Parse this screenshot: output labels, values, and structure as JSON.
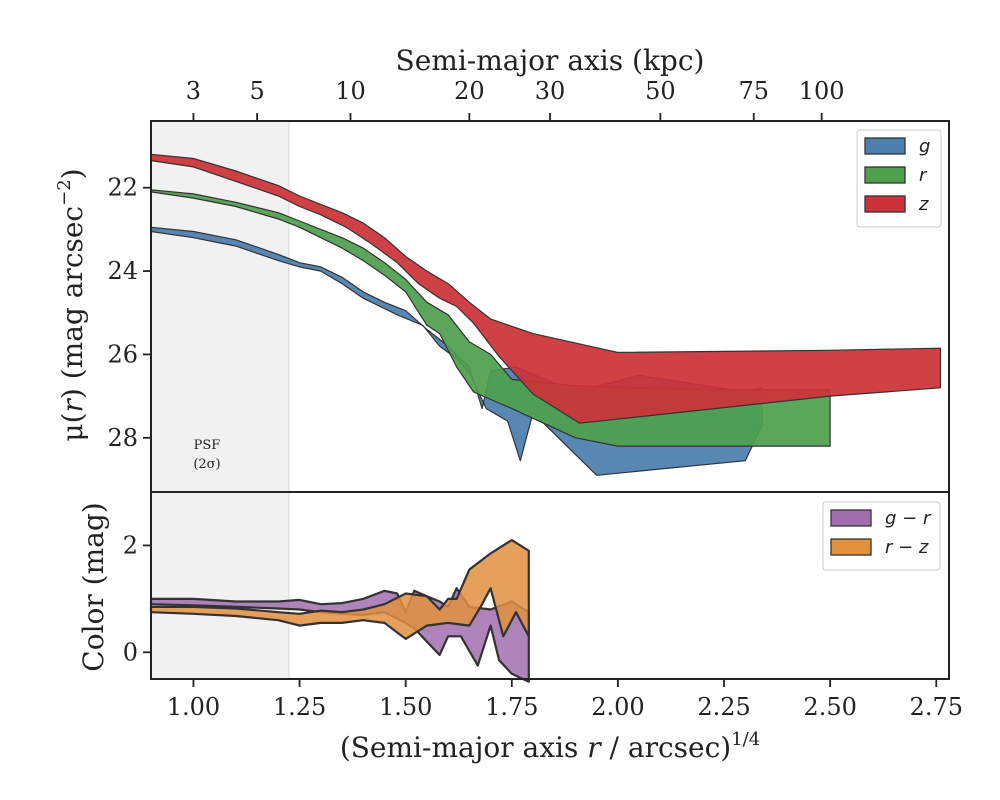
{
  "colors": {
    "g": "#4c7eae",
    "r": "#4f9f4f",
    "z": "#cc3338",
    "gr": "#a06eae",
    "rz": "#e1913e",
    "psf": "#f1f1f1"
  },
  "chart_data": [
    {
      "type": "area",
      "panel": "surface-brightness",
      "xlabel_parts": [
        "(Semi-major axis ",
        "r",
        " / arcsec)",
        "1/4"
      ],
      "ylabel_parts": [
        "μ(",
        "r",
        ") (mag arcsec",
        "−2",
        ")"
      ],
      "top_axis_title": "Semi-major axis (kpc)",
      "xlim": [
        0.9,
        2.78
      ],
      "ylim": [
        29.3,
        20.4
      ],
      "y_inverted": true,
      "x_ticks": [
        1.0,
        1.25,
        1.5,
        1.75,
        2.0,
        2.25,
        2.5,
        2.75
      ],
      "x_tick_labels": [
        "1.00",
        "1.25",
        "1.50",
        "1.75",
        "2.00",
        "2.25",
        "2.50",
        "2.75"
      ],
      "y_ticks": [
        22,
        24,
        26,
        28
      ],
      "y_tick_labels": [
        "22",
        "24",
        "26",
        "28"
      ],
      "top_ticks": [
        {
          "label": "3",
          "x": 1.0
        },
        {
          "label": "5",
          "x": 1.15
        },
        {
          "label": "10",
          "x": 1.37
        },
        {
          "label": "20",
          "x": 1.65
        },
        {
          "label": "30",
          "x": 1.84
        },
        {
          "label": "50",
          "x": 2.1
        },
        {
          "label": "75",
          "x": 2.32
        },
        {
          "label": "100",
          "x": 2.48
        }
      ],
      "psf_region": {
        "x0": 0.9,
        "x1": 1.225
      },
      "psf_label_lines": [
        "PSF",
        "(2σ)"
      ],
      "legend_position": "top-right",
      "series": [
        {
          "name": "g",
          "color_key": "g",
          "upper": [
            [
              0.9,
              22.95
            ],
            [
              1.0,
              23.05
            ],
            [
              1.1,
              23.25
            ],
            [
              1.2,
              23.6
            ],
            [
              1.25,
              23.8
            ],
            [
              1.3,
              23.9
            ],
            [
              1.35,
              24.15
            ],
            [
              1.4,
              24.5
            ],
            [
              1.45,
              24.75
            ],
            [
              1.5,
              24.95
            ],
            [
              1.55,
              25.4
            ],
            [
              1.6,
              25.8
            ],
            [
              1.65,
              26.3
            ],
            [
              1.68,
              27.3
            ],
            [
              1.7,
              26.4
            ],
            [
              1.76,
              26.3
            ],
            [
              1.9,
              26.9
            ],
            [
              2.05,
              26.5
            ],
            [
              2.3,
              26.9
            ],
            [
              2.34,
              26.8
            ]
          ],
          "lower": [
            [
              2.34,
              27.7
            ],
            [
              2.3,
              28.55
            ],
            [
              1.95,
              28.9
            ],
            [
              1.8,
              27.4
            ],
            [
              1.77,
              28.55
            ],
            [
              1.74,
              27.6
            ],
            [
              1.69,
              27.3
            ],
            [
              1.65,
              26.45
            ],
            [
              1.62,
              26.1
            ],
            [
              1.58,
              25.8
            ],
            [
              1.54,
              25.3
            ],
            [
              1.48,
              25.05
            ],
            [
              1.4,
              24.65
            ],
            [
              1.35,
              24.3
            ],
            [
              1.3,
              24.0
            ],
            [
              1.25,
              23.9
            ],
            [
              1.2,
              23.75
            ],
            [
              1.1,
              23.4
            ],
            [
              1.0,
              23.2
            ],
            [
              0.9,
              23.05
            ]
          ]
        },
        {
          "name": "r",
          "color_key": "r",
          "upper": [
            [
              0.9,
              22.05
            ],
            [
              1.0,
              22.15
            ],
            [
              1.1,
              22.35
            ],
            [
              1.2,
              22.6
            ],
            [
              1.25,
              22.8
            ],
            [
              1.3,
              23.0
            ],
            [
              1.35,
              23.2
            ],
            [
              1.4,
              23.45
            ],
            [
              1.45,
              23.8
            ],
            [
              1.5,
              24.2
            ],
            [
              1.55,
              24.75
            ],
            [
              1.6,
              25.05
            ],
            [
              1.65,
              25.7
            ],
            [
              1.7,
              26.0
            ],
            [
              1.75,
              26.6
            ],
            [
              1.9,
              26.75
            ],
            [
              2.05,
              26.8
            ],
            [
              2.3,
              26.85
            ],
            [
              2.5,
              26.85
            ]
          ],
          "lower": [
            [
              2.5,
              28.2
            ],
            [
              2.0,
              28.2
            ],
            [
              1.9,
              28.0
            ],
            [
              1.75,
              27.3
            ],
            [
              1.66,
              26.9
            ],
            [
              1.62,
              26.3
            ],
            [
              1.58,
              25.5
            ],
            [
              1.55,
              25.3
            ],
            [
              1.5,
              24.5
            ],
            [
              1.45,
              24.1
            ],
            [
              1.4,
              23.75
            ],
            [
              1.35,
              23.45
            ],
            [
              1.3,
              23.2
            ],
            [
              1.25,
              22.95
            ],
            [
              1.2,
              22.75
            ],
            [
              1.1,
              22.45
            ],
            [
              1.0,
              22.25
            ],
            [
              0.9,
              22.1
            ]
          ]
        },
        {
          "name": "z",
          "color_key": "z",
          "upper": [
            [
              0.9,
              21.2
            ],
            [
              1.0,
              21.3
            ],
            [
              1.1,
              21.6
            ],
            [
              1.2,
              21.95
            ],
            [
              1.25,
              22.2
            ],
            [
              1.3,
              22.4
            ],
            [
              1.35,
              22.6
            ],
            [
              1.4,
              22.85
            ],
            [
              1.45,
              23.2
            ],
            [
              1.5,
              23.65
            ],
            [
              1.55,
              24.0
            ],
            [
              1.6,
              24.3
            ],
            [
              1.65,
              24.75
            ],
            [
              1.7,
              25.15
            ],
            [
              1.8,
              25.5
            ],
            [
              2.0,
              25.95
            ],
            [
              2.5,
              25.9
            ],
            [
              2.76,
              25.85
            ]
          ],
          "lower": [
            [
              2.76,
              26.8
            ],
            [
              2.5,
              27.0
            ],
            [
              1.91,
              27.65
            ],
            [
              1.8,
              26.95
            ],
            [
              1.72,
              26.05
            ],
            [
              1.66,
              25.25
            ],
            [
              1.62,
              24.85
            ],
            [
              1.58,
              24.65
            ],
            [
              1.53,
              24.3
            ],
            [
              1.48,
              23.8
            ],
            [
              1.42,
              23.35
            ],
            [
              1.36,
              22.95
            ],
            [
              1.3,
              22.65
            ],
            [
              1.25,
              22.45
            ],
            [
              1.2,
              22.2
            ],
            [
              1.1,
              21.85
            ],
            [
              1.0,
              21.5
            ],
            [
              0.9,
              21.35
            ]
          ]
        }
      ]
    },
    {
      "type": "area",
      "panel": "color",
      "xlabel": "",
      "ylabel": "Color (mag)",
      "xlim": [
        0.9,
        2.78
      ],
      "ylim": [
        -0.5,
        3.0
      ],
      "y_ticks": [
        0,
        2
      ],
      "y_tick_labels": [
        "0",
        "2"
      ],
      "legend_position": "top-right",
      "legend_labels": [
        "g − r",
        "r − z"
      ],
      "series": [
        {
          "name": "g − r",
          "color_key": "gr",
          "upper": [
            [
              0.9,
              1.0
            ],
            [
              1.0,
              1.0
            ],
            [
              1.1,
              0.95
            ],
            [
              1.2,
              0.95
            ],
            [
              1.25,
              0.98
            ],
            [
              1.3,
              0.9
            ],
            [
              1.35,
              0.92
            ],
            [
              1.4,
              1.0
            ],
            [
              1.45,
              1.15
            ],
            [
              1.48,
              1.1
            ],
            [
              1.5,
              0.75
            ],
            [
              1.52,
              1.15
            ],
            [
              1.55,
              1.05
            ],
            [
              1.58,
              0.95
            ],
            [
              1.6,
              0.85
            ],
            [
              1.62,
              1.2
            ],
            [
              1.65,
              0.85
            ],
            [
              1.7,
              0.8
            ],
            [
              1.75,
              0.95
            ],
            [
              1.79,
              0.75
            ]
          ],
          "lower": [
            [
              1.79,
              -0.55
            ],
            [
              1.75,
              -0.4
            ],
            [
              1.72,
              -0.15
            ],
            [
              1.7,
              0.5
            ],
            [
              1.67,
              -0.25
            ],
            [
              1.63,
              0.3
            ],
            [
              1.6,
              0.3
            ],
            [
              1.58,
              -0.05
            ],
            [
              1.55,
              0.2
            ],
            [
              1.52,
              0.45
            ],
            [
              1.5,
              0.55
            ],
            [
              1.45,
              0.75
            ],
            [
              1.4,
              0.7
            ],
            [
              1.35,
              0.72
            ],
            [
              1.3,
              0.75
            ],
            [
              1.25,
              0.8
            ],
            [
              1.2,
              0.82
            ],
            [
              1.1,
              0.85
            ],
            [
              1.0,
              0.88
            ],
            [
              0.9,
              0.9
            ]
          ]
        },
        {
          "name": "r − z",
          "color_key": "rz",
          "upper": [
            [
              0.9,
              0.85
            ],
            [
              1.0,
              0.85
            ],
            [
              1.1,
              0.82
            ],
            [
              1.2,
              0.75
            ],
            [
              1.25,
              0.72
            ],
            [
              1.3,
              0.78
            ],
            [
              1.35,
              0.75
            ],
            [
              1.4,
              0.8
            ],
            [
              1.45,
              0.9
            ],
            [
              1.5,
              1.1
            ],
            [
              1.55,
              1.05
            ],
            [
              1.58,
              0.8
            ],
            [
              1.6,
              1.0
            ],
            [
              1.62,
              1.0
            ],
            [
              1.65,
              1.55
            ],
            [
              1.7,
              1.85
            ],
            [
              1.75,
              2.1
            ],
            [
              1.79,
              1.9
            ]
          ],
          "lower": [
            [
              1.79,
              0.3
            ],
            [
              1.76,
              0.75
            ],
            [
              1.73,
              0.3
            ],
            [
              1.7,
              1.2
            ],
            [
              1.68,
              0.9
            ],
            [
              1.65,
              0.5
            ],
            [
              1.6,
              0.55
            ],
            [
              1.55,
              0.5
            ],
            [
              1.5,
              0.25
            ],
            [
              1.45,
              0.55
            ],
            [
              1.4,
              0.6
            ],
            [
              1.35,
              0.55
            ],
            [
              1.3,
              0.55
            ],
            [
              1.25,
              0.5
            ],
            [
              1.2,
              0.6
            ],
            [
              1.1,
              0.68
            ],
            [
              1.0,
              0.72
            ],
            [
              0.9,
              0.75
            ]
          ]
        }
      ]
    }
  ]
}
